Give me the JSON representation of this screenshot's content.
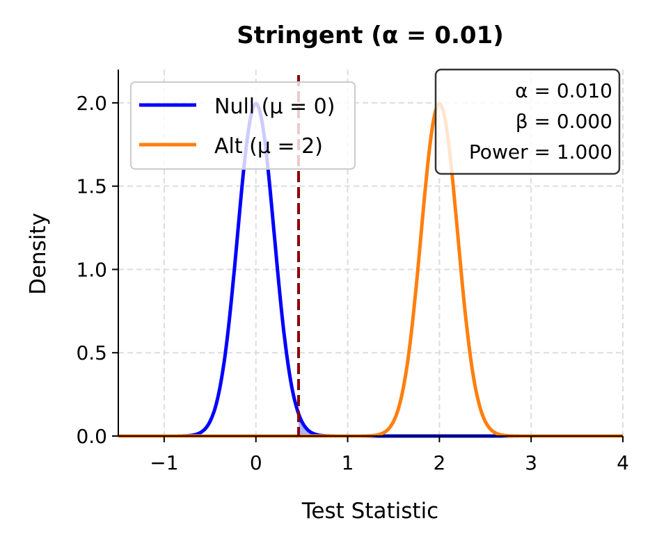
{
  "chart_data": {
    "type": "line",
    "title": "Stringent (α = 0.01)",
    "xlabel": "Test Statistic",
    "ylabel": "Density",
    "xlim": [
      -1.5,
      4
    ],
    "ylim": [
      0,
      2.2
    ],
    "xticks": [
      "−1",
      "0",
      "1",
      "2",
      "3",
      "4"
    ],
    "xtick_values": [
      -1,
      0,
      1,
      2,
      3,
      4
    ],
    "yticks": [
      "0.0",
      "0.5",
      "1.0",
      "1.5",
      "2.0"
    ],
    "ytick_values": [
      0,
      0.5,
      1,
      1.5,
      2
    ],
    "grid": true,
    "legend_placement": "upper-left",
    "series": [
      {
        "name": "Null (μ = 0)",
        "distribution": "normal",
        "mean": 0,
        "sd": 0.2,
        "color": "#0000ff"
      },
      {
        "name": "Alt (μ = 2)",
        "distribution": "normal",
        "mean": 2,
        "sd": 0.2,
        "color": "#ff7f0e"
      }
    ],
    "critical_value": 0.465,
    "critical_line_color": "#8b0000",
    "shaded_region": {
      "series": "Null (μ = 0)",
      "from": 0.465,
      "color": "#0000ff"
    },
    "annotation": [
      "α = 0.010",
      "β = 0.000",
      "Power = 1.000"
    ]
  }
}
